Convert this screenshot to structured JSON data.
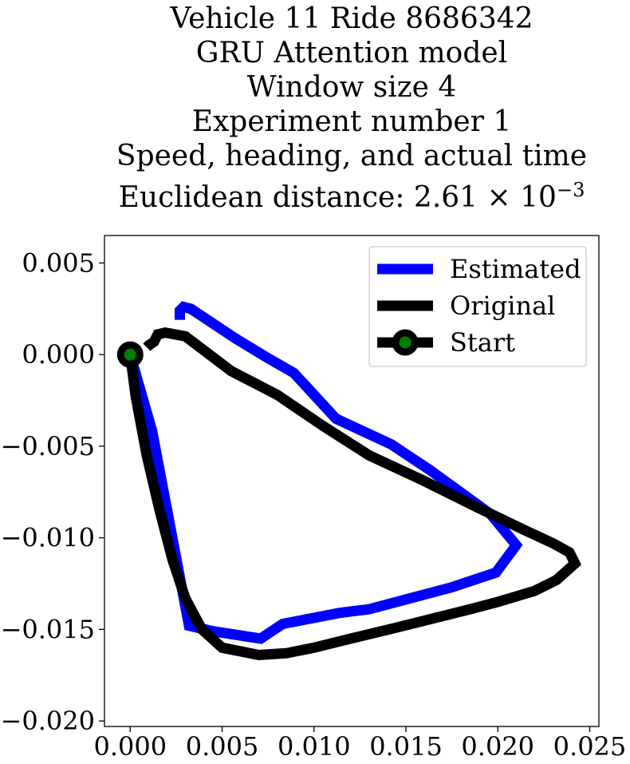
{
  "chart_data": {
    "type": "line",
    "title_lines": [
      "Vehicle 11 Ride 8686342",
      "GRU Attention model",
      "Window size 4",
      "Experiment number 1",
      "Speed, heading, and actual time"
    ],
    "title_distance_prefix": "Euclidean distance: 2.61",
    "title_distance_times": "×",
    "title_distance_base": "10",
    "title_distance_exponent": "−3",
    "xlim": [
      -0.0014,
      0.0255
    ],
    "ylim": [
      -0.0203,
      0.0065
    ],
    "xticks": [
      0.0,
      0.005,
      0.01,
      0.015,
      0.02,
      0.025
    ],
    "xtick_labels": [
      "0.000",
      "0.005",
      "0.010",
      "0.015",
      "0.020",
      "0.025"
    ],
    "yticks": [
      0.005,
      0.0,
      -0.005,
      -0.01,
      -0.015,
      -0.02
    ],
    "ytick_labels": [
      "0.005",
      "0.000",
      "−0.005",
      "−0.010",
      "−0.015",
      "−0.020"
    ],
    "legend_position": "upper-right",
    "series": [
      {
        "name": "Estimated",
        "color": "#0000ff",
        "points": [
          [
            0.0,
            0.0
          ],
          [
            0.0012,
            -0.0042
          ],
          [
            0.0032,
            -0.0148
          ],
          [
            0.0045,
            -0.0151
          ],
          [
            0.0071,
            -0.0155
          ],
          [
            0.0083,
            -0.0147
          ],
          [
            0.0114,
            -0.0141
          ],
          [
            0.013,
            -0.0139
          ],
          [
            0.0175,
            -0.0127
          ],
          [
            0.0199,
            -0.0119
          ],
          [
            0.021,
            -0.0104
          ],
          [
            0.0196,
            -0.0087
          ],
          [
            0.0163,
            -0.0063
          ],
          [
            0.0142,
            -0.0049
          ],
          [
            0.0112,
            -0.0035
          ],
          [
            0.0089,
            -0.001
          ],
          [
            0.0075,
            -0.0002
          ],
          [
            0.0057,
            0.0009
          ],
          [
            0.0033,
            0.0025
          ],
          [
            0.0029,
            0.0026
          ],
          [
            0.0027,
            0.0024
          ],
          [
            0.0027,
            0.0019
          ]
        ]
      },
      {
        "name": "Original",
        "color": "#000000",
        "points": [
          [
            0.0,
            0.0
          ],
          [
            0.0003,
            -0.0023
          ],
          [
            0.0009,
            -0.0055
          ],
          [
            0.0016,
            -0.0085
          ],
          [
            0.0023,
            -0.0112
          ],
          [
            0.003,
            -0.0133
          ],
          [
            0.0039,
            -0.015
          ],
          [
            0.005,
            -0.016
          ],
          [
            0.007,
            -0.0164
          ],
          [
            0.0085,
            -0.0163
          ],
          [
            0.01,
            -0.016
          ],
          [
            0.012,
            -0.0155
          ],
          [
            0.0145,
            -0.0149
          ],
          [
            0.0165,
            -0.0144
          ],
          [
            0.0185,
            -0.0139
          ],
          [
            0.02,
            -0.0135
          ],
          [
            0.022,
            -0.0129
          ],
          [
            0.0232,
            -0.0123
          ],
          [
            0.0242,
            -0.0114
          ],
          [
            0.0239,
            -0.0108
          ],
          [
            0.023,
            -0.0103
          ],
          [
            0.0215,
            -0.0096
          ],
          [
            0.019,
            -0.0084
          ],
          [
            0.016,
            -0.0069
          ],
          [
            0.013,
            -0.0055
          ],
          [
            0.0105,
            -0.0039
          ],
          [
            0.008,
            -0.0022
          ],
          [
            0.0055,
            -0.0009
          ],
          [
            0.003,
            0.001
          ],
          [
            0.0019,
            0.0012
          ],
          [
            0.0015,
            0.0011
          ],
          [
            0.0013,
            0.0007
          ],
          [
            0.001,
            0.0005
          ],
          [
            0.0009,
            0.0004
          ]
        ]
      },
      {
        "name": "Start",
        "color": "#000000",
        "marker_color": "#008000",
        "points": [
          [
            0.0,
            0.0
          ]
        ]
      }
    ]
  }
}
